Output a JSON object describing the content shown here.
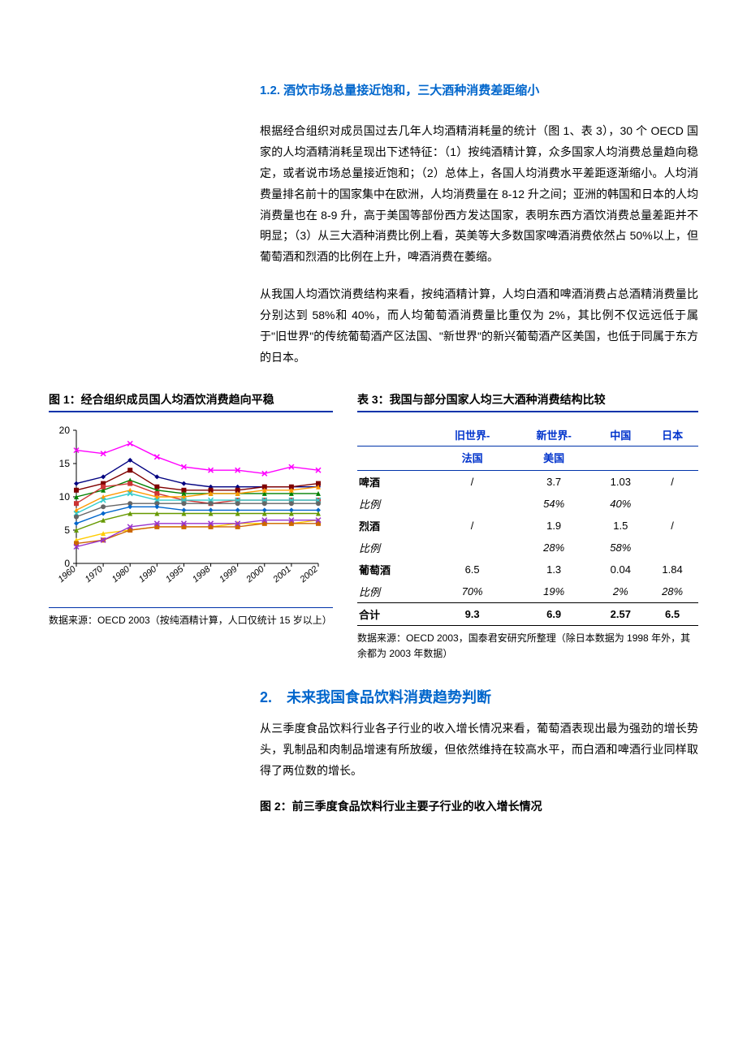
{
  "section_1_2": {
    "title": "1.2. 酒饮市场总量接近饱和，三大酒种消费差距缩小",
    "p1": "根据经合组织对成员国过去几年人均酒精消耗量的统计（图 1、表 3），30 个 OECD 国家的人均酒精消耗呈现出下述特征：（1）按纯酒精计算，众多国家人均消费总量趋向稳定，或者说市场总量接近饱和；（2）总体上，各国人均消费水平差距逐渐缩小。人均消费量排名前十的国家集中在欧洲，人均消费量在 8-12 升之间；亚洲的韩国和日本的人均消费量也在 8-9 升，高于美国等部份西方发达国家，表明东西方酒饮消费总量差距并不明显；（3）从三大酒种消费比例上看，英美等大多数国家啤酒消费依然占 50%以上，但葡萄酒和烈酒的比例在上升，啤酒消费在萎缩。",
    "p2": "从我国人均酒饮消费结构来看，按纯酒精计算，人均白酒和啤酒消费占总酒精消费量比分别达到 58%和 40%，而人均葡萄酒消费量比重仅为 2%，其比例不仅远远低于属于\"旧世界\"的传统葡萄酒产区法国、\"新世界\"的新兴葡萄酒产区美国，也低于同属于东方的日本。"
  },
  "fig1": {
    "caption": "图 1：经合组织成员国人均酒饮消费趋向平稳",
    "source": "数据来源：OECD 2003（按纯酒精计算，人口仅统计 15 岁以上）",
    "ylim": [
      0,
      20
    ],
    "ytick_step": 5,
    "yticks": [
      "0",
      "5",
      "10",
      "15",
      "20"
    ],
    "xlabels": [
      "1960",
      "1970",
      "1980",
      "1990",
      "1995",
      "1998",
      "1999",
      "2000",
      "2001",
      "2002"
    ],
    "background_color": "#ffffff",
    "axis_color": "#000000",
    "series": [
      {
        "color": "#ff00ff",
        "marker": "x",
        "values": [
          17.0,
          16.5,
          18.0,
          16.0,
          14.5,
          14.0,
          14.0,
          13.5,
          14.5,
          14.0
        ]
      },
      {
        "color": "#000080",
        "marker": "diamond",
        "values": [
          12.0,
          13.0,
          15.5,
          13.0,
          12.0,
          11.5,
          11.5,
          11.5,
          11.5,
          11.5
        ]
      },
      {
        "color": "#800000",
        "marker": "square",
        "values": [
          11.0,
          12.0,
          14.0,
          11.5,
          11.0,
          11.0,
          11.0,
          11.5,
          11.5,
          12.0
        ]
      },
      {
        "color": "#008000",
        "marker": "triangle",
        "values": [
          10.0,
          11.0,
          12.5,
          11.0,
          10.5,
          10.5,
          10.5,
          10.5,
          10.5,
          10.5
        ]
      },
      {
        "color": "#cc3333",
        "marker": "square",
        "values": [
          9.0,
          11.5,
          12.0,
          10.5,
          9.5,
          9.0,
          9.5,
          9.5,
          9.5,
          9.5
        ]
      },
      {
        "color": "#ff9900",
        "marker": "triangle",
        "values": [
          8.0,
          10.0,
          11.0,
          10.0,
          10.0,
          10.5,
          10.5,
          11.0,
          11.0,
          11.5
        ]
      },
      {
        "color": "#33cccc",
        "marker": "x",
        "values": [
          7.5,
          9.5,
          10.5,
          9.5,
          9.5,
          9.5,
          9.5,
          9.5,
          9.5,
          9.5
        ]
      },
      {
        "color": "#666666",
        "marker": "circle",
        "values": [
          7.0,
          8.5,
          9.0,
          9.0,
          9.0,
          9.0,
          9.0,
          9.0,
          9.0,
          9.0
        ]
      },
      {
        "color": "#0066cc",
        "marker": "diamond",
        "values": [
          6.0,
          7.5,
          8.5,
          8.5,
          8.0,
          8.0,
          8.0,
          8.0,
          8.0,
          8.0
        ]
      },
      {
        "color": "#669900",
        "marker": "triangle",
        "values": [
          5.0,
          6.5,
          7.5,
          7.5,
          7.5,
          7.5,
          7.5,
          7.5,
          7.5,
          7.5
        ]
      },
      {
        "color": "#ffcc00",
        "marker": "triangle",
        "values": [
          3.5,
          4.5,
          5.0,
          5.5,
          5.5,
          5.5,
          6.0,
          6.0,
          6.0,
          6.5
        ]
      },
      {
        "color": "#cc6600",
        "marker": "square",
        "values": [
          3.0,
          3.5,
          5.0,
          5.5,
          5.5,
          5.5,
          5.5,
          6.0,
          6.0,
          6.0
        ]
      },
      {
        "color": "#9933cc",
        "marker": "x",
        "values": [
          2.5,
          3.5,
          5.5,
          6.0,
          6.0,
          6.0,
          6.0,
          6.5,
          6.5,
          6.5
        ]
      }
    ]
  },
  "tab3": {
    "caption": "表 3：我国与部分国家人均三大酒种消费结构比较",
    "source": "数据来源：OECD 2003，国泰君安研究所整理（除日本数据为 1998 年外，其余都为 2003 年数据）",
    "header_color": "#0033cc",
    "columns": [
      {
        "top": "旧世界-",
        "sub": "法国"
      },
      {
        "top": "新世界-",
        "sub": "美国"
      },
      {
        "top": "中国",
        "sub": ""
      },
      {
        "top": "日本",
        "sub": ""
      }
    ],
    "rows": [
      {
        "label": "啤酒",
        "bold": true,
        "italic": false,
        "cells": [
          "/",
          "3.7",
          "1.03",
          "/"
        ]
      },
      {
        "label": "比例",
        "bold": false,
        "italic": true,
        "cells": [
          "",
          "54%",
          "40%",
          ""
        ]
      },
      {
        "label": "烈酒",
        "bold": true,
        "italic": false,
        "cells": [
          "/",
          "1.9",
          "1.5",
          "/"
        ]
      },
      {
        "label": "比例",
        "bold": false,
        "italic": true,
        "cells": [
          "",
          "28%",
          "58%",
          ""
        ]
      },
      {
        "label": "葡萄酒",
        "bold": true,
        "italic": false,
        "cells": [
          "6.5",
          "1.3",
          "0.04",
          "1.84"
        ]
      },
      {
        "label": "比例",
        "bold": false,
        "italic": true,
        "cells": [
          "70%",
          "19%",
          "2%",
          "28%"
        ]
      }
    ],
    "total": {
      "label": "合计",
      "cells": [
        "9.3",
        "6.9",
        "2.57",
        "6.5"
      ]
    }
  },
  "section_2": {
    "title": "2.　未来我国食品饮料消费趋势判断",
    "p1": "从三季度食品饮料行业各子行业的收入增长情况来看，葡萄酒表现出最为强劲的增长势头，乳制品和肉制品增速有所放缓，但依然维持在较高水平，而白酒和啤酒行业同样取得了两位数的增长。"
  },
  "fig2": {
    "caption": "图 2：前三季度食品饮料行业主要子行业的收入增长情况"
  }
}
